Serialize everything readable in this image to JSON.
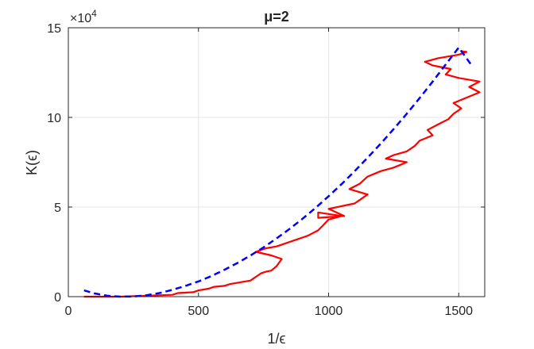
{
  "chart_data": {
    "type": "line",
    "title": "μ=2",
    "xlabel": "1/ϵ",
    "ylabel": "K(ϵ)",
    "y_exponent_label": "×10",
    "y_exponent_power": "4",
    "xlim": [
      0,
      1600
    ],
    "ylim": [
      0,
      150000
    ],
    "x_ticks": [
      0,
      500,
      1000,
      1500
    ],
    "x_tick_labels": [
      "0",
      "500",
      "1000",
      "1500"
    ],
    "y_ticks": [
      0,
      50000,
      100000,
      150000
    ],
    "y_tick_labels": [
      "0",
      "5",
      "10",
      "15"
    ],
    "grid": true,
    "legend": "none",
    "series": [
      {
        "style": "solid",
        "color": "#ff0000",
        "x": [
          60,
          200,
          400,
          420,
          480,
          500,
          520,
          540,
          560,
          600,
          620,
          700,
          720,
          740,
          760,
          780,
          800,
          820,
          780,
          720,
          760,
          800,
          840,
          880,
          920,
          960,
          980,
          1000,
          1050,
          960,
          960,
          1060,
          1000,
          1100,
          1150,
          1080,
          1120,
          1150,
          1200,
          1250,
          1300,
          1220,
          1250,
          1300,
          1330,
          1350,
          1400,
          1380,
          1420,
          1460,
          1480,
          1510,
          1480,
          1530,
          1580,
          1540,
          1580,
          1500,
          1450,
          1470,
          1400,
          1370,
          1420,
          1500,
          1530,
          1510
        ],
        "y": [
          0,
          0,
          1000,
          2000,
          2500,
          3500,
          4000,
          4500,
          5500,
          6000,
          7000,
          9000,
          11000,
          13000,
          14000,
          14500,
          17000,
          21000,
          23000,
          25000,
          27000,
          28000,
          30000,
          32000,
          34000,
          37000,
          40000,
          43000,
          45000,
          47000,
          44000,
          45000,
          49000,
          52000,
          57000,
          60000,
          63000,
          67000,
          70000,
          72000,
          75000,
          77000,
          79000,
          81000,
          84000,
          87000,
          90000,
          93000,
          96000,
          99000,
          102000,
          105000,
          108000,
          111000,
          114000,
          117000,
          120000,
          122000,
          124000,
          127000,
          129000,
          131000,
          133000,
          135000,
          136500,
          137000
        ]
      },
      {
        "style": "dashed",
        "color": "#0000ff",
        "x": [
          60,
          100,
          150,
          200,
          250,
          300,
          350,
          400,
          450,
          500,
          550,
          600,
          650,
          700,
          750,
          800,
          850,
          900,
          950,
          1000,
          1050,
          1100,
          1150,
          1200,
          1250,
          1300,
          1350,
          1400,
          1450,
          1500,
          1550
        ],
        "y": [
          3500,
          1800,
          500,
          0,
          100,
          800,
          2000,
          3800,
          6000,
          8500,
          11500,
          15000,
          18800,
          23000,
          27500,
          32500,
          37800,
          43500,
          49500,
          56000,
          62800,
          70000,
          77500,
          85300,
          93500,
          102000,
          110800,
          120000,
          129500,
          139000,
          129000
        ]
      }
    ]
  }
}
